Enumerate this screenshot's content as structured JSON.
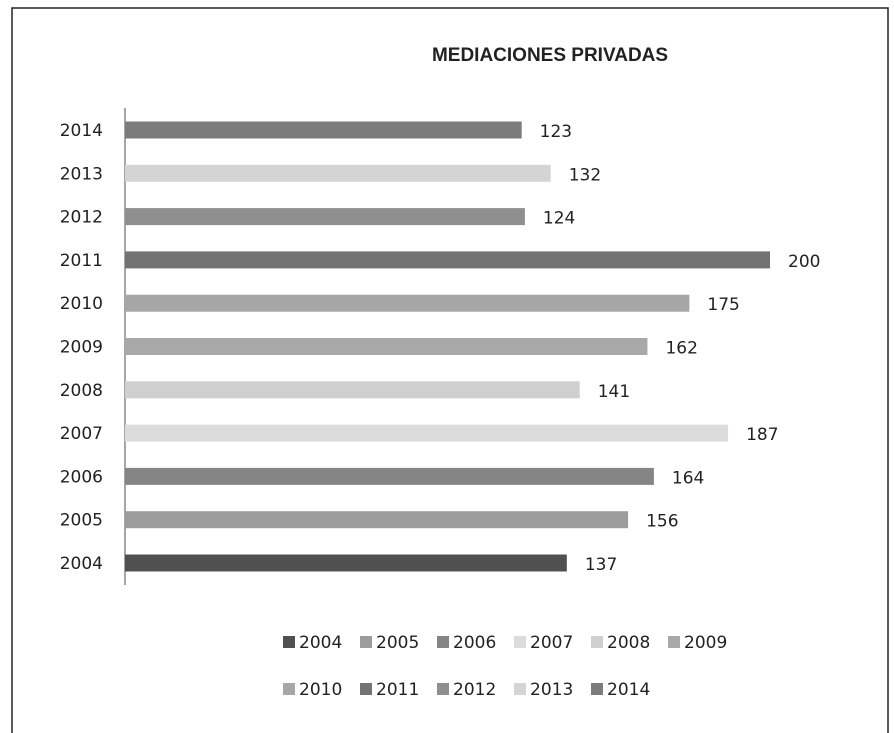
{
  "chart_data": {
    "type": "bar",
    "orientation": "horizontal",
    "title": "MEDIACIONES PRIVADAS",
    "categories": [
      "2004",
      "2005",
      "2006",
      "2007",
      "2008",
      "2009",
      "2010",
      "2011",
      "2012",
      "2013",
      "2014"
    ],
    "values": [
      137,
      156,
      164,
      187,
      141,
      162,
      175,
      200,
      124,
      132,
      123
    ],
    "colors": [
      "#505050",
      "#9c9c9c",
      "#858585",
      "#dcdcdc",
      "#cfcfcf",
      "#a8a8a8",
      "#a6a6a6",
      "#737373",
      "#8f8f8f",
      "#d4d4d4",
      "#7c7c7c"
    ],
    "xlim": [
      0,
      200
    ],
    "legend": "bottom"
  }
}
